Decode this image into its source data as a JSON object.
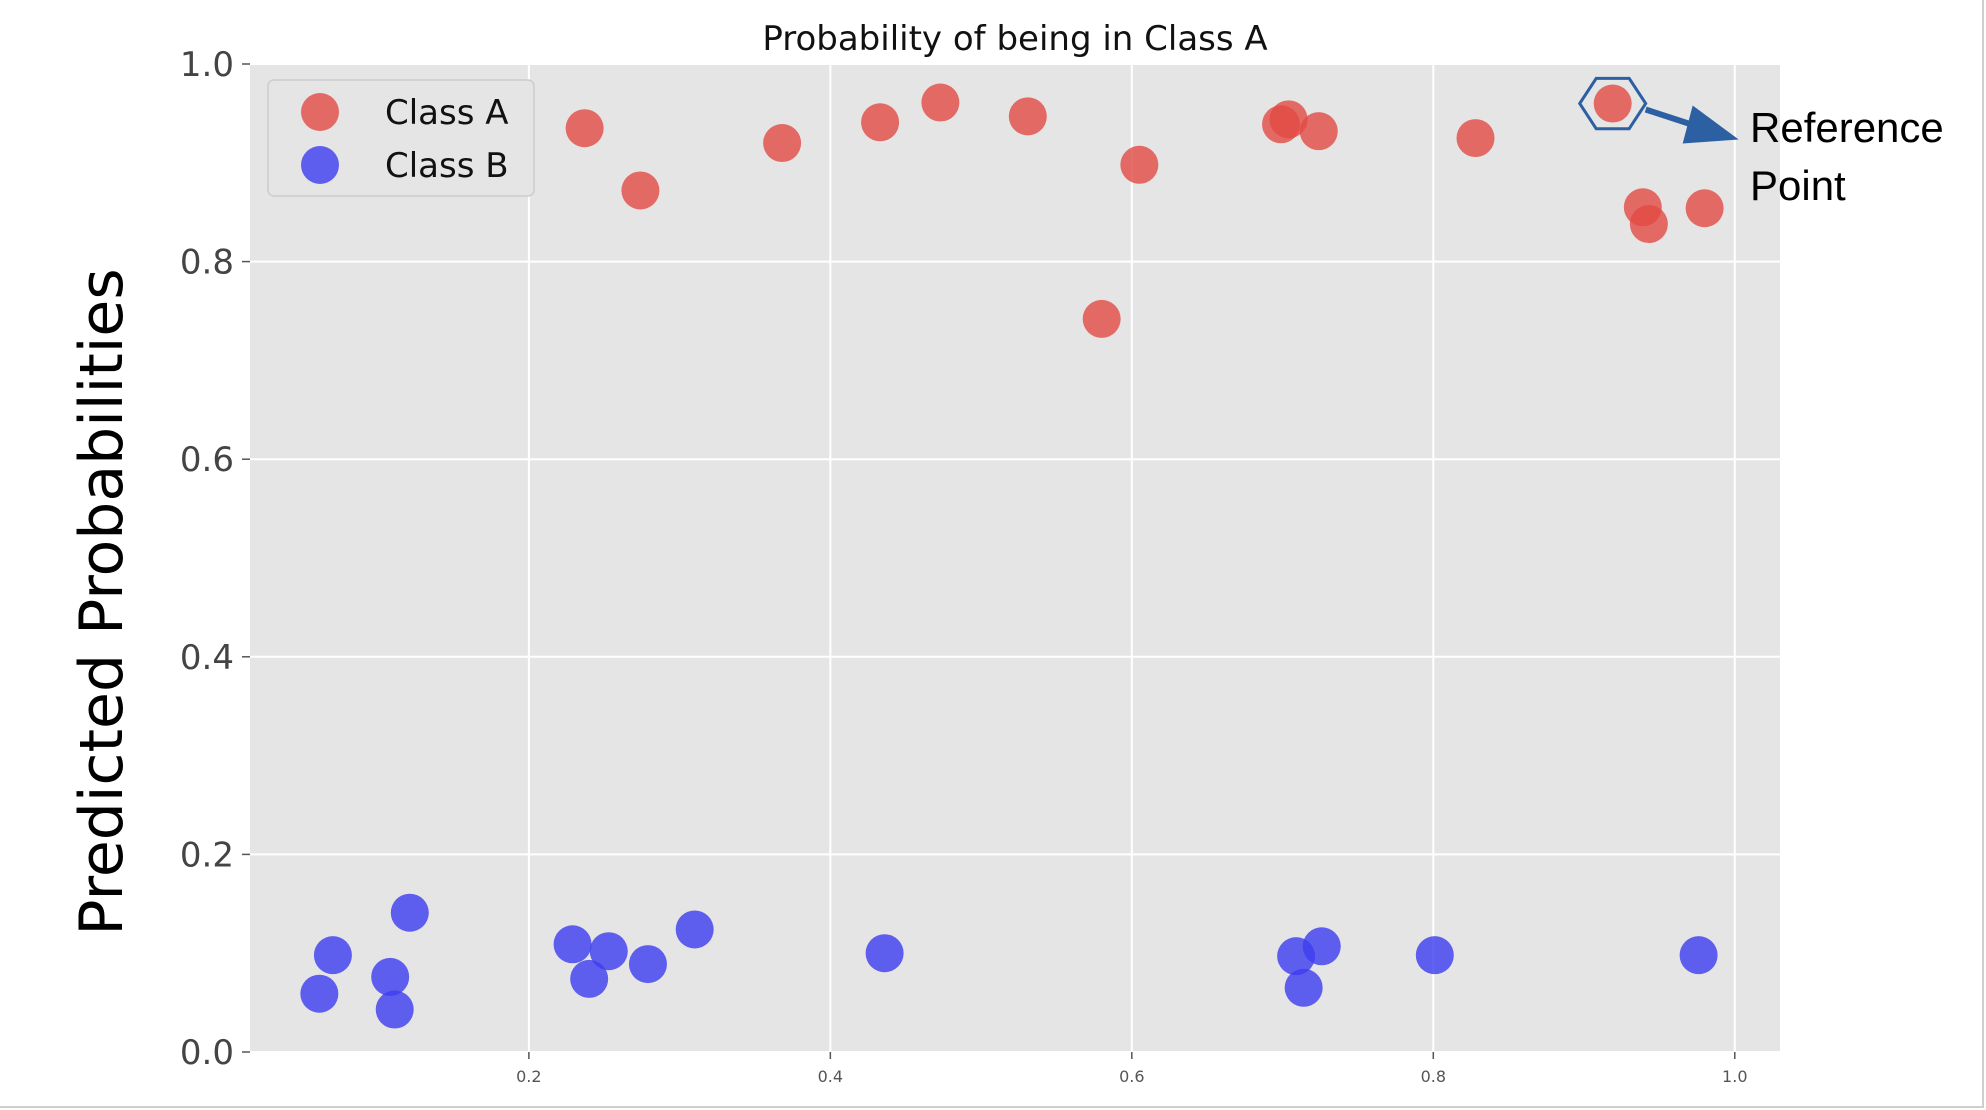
{
  "chart_data": {
    "type": "scatter",
    "title": "Probability of being in Class A",
    "xlabel": "",
    "ylabel": "Predicted Probabilities",
    "xlim": [
      0.015,
      1.03
    ],
    "ylim": [
      0.0,
      1.0
    ],
    "grid": true,
    "legend_position": "top-left",
    "xticks": [
      "0.2",
      "0.4",
      "0.6",
      "0.8",
      "1.0"
    ],
    "yticks": [
      "0.0",
      "0.2",
      "0.4",
      "0.6",
      "0.8",
      "1.0"
    ],
    "series": [
      {
        "name": "Class A",
        "color": "#e24a43",
        "points": [
          [
            0.237,
            0.935
          ],
          [
            0.274,
            0.872
          ],
          [
            0.368,
            0.92
          ],
          [
            0.433,
            0.941
          ],
          [
            0.473,
            0.961
          ],
          [
            0.531,
            0.947
          ],
          [
            0.58,
            0.742
          ],
          [
            0.605,
            0.898
          ],
          [
            0.699,
            0.939
          ],
          [
            0.704,
            0.944
          ],
          [
            0.724,
            0.932
          ],
          [
            0.828,
            0.925
          ],
          [
            0.919,
            0.96
          ],
          [
            0.939,
            0.855
          ],
          [
            0.943,
            0.838
          ],
          [
            0.98,
            0.854
          ]
        ]
      },
      {
        "name": "Class B",
        "color": "#3c3cf0",
        "points": [
          [
            0.061,
            0.059
          ],
          [
            0.07,
            0.098
          ],
          [
            0.108,
            0.076
          ],
          [
            0.111,
            0.043
          ],
          [
            0.121,
            0.141
          ],
          [
            0.229,
            0.109
          ],
          [
            0.24,
            0.074
          ],
          [
            0.253,
            0.102
          ],
          [
            0.279,
            0.089
          ],
          [
            0.31,
            0.124
          ],
          [
            0.436,
            0.1
          ],
          [
            0.709,
            0.097
          ],
          [
            0.714,
            0.065
          ],
          [
            0.726,
            0.107
          ],
          [
            0.801,
            0.098
          ],
          [
            0.976,
            0.098
          ]
        ]
      }
    ],
    "annotation": {
      "line1": "Reference",
      "line2": "Point",
      "target": [
        0.919,
        0.96
      ],
      "marker": "hexagon",
      "color": "#2d5fa3"
    }
  }
}
